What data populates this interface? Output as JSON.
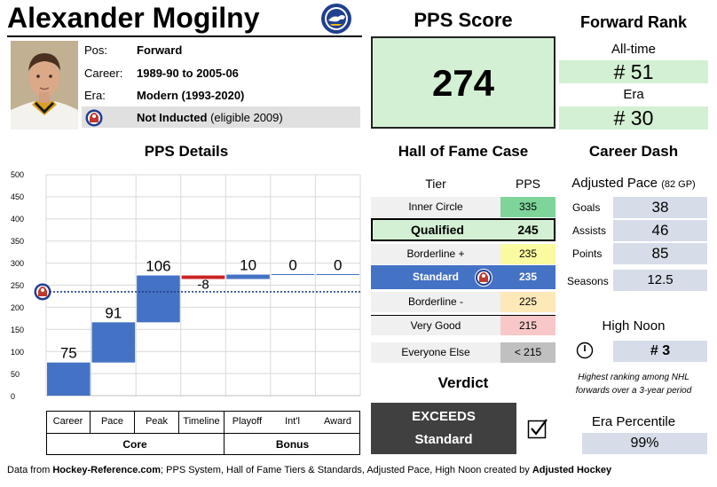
{
  "player": {
    "name": "Alexander Mogilny",
    "pos_label": "Pos:",
    "pos_value": "Forward",
    "career_label": "Career:",
    "career_value": "1989-90 to 2005-06",
    "era_label": "Era:",
    "era_value": "Modern (1993-2020)",
    "hof_status": "Not Inducted",
    "hof_note": "(eligible 2009)"
  },
  "pps_score": {
    "title": "PPS Score",
    "value": "274"
  },
  "forward_rank": {
    "title": "Forward Rank",
    "alltime_label": "All-time",
    "alltime_value": "# 51",
    "era_label": "Era",
    "era_value": "# 30"
  },
  "pps_details": {
    "title": "PPS Details"
  },
  "chart_data": {
    "type": "bar",
    "subtype": "waterfall",
    "title": "PPS Details",
    "ylim": [
      0,
      500
    ],
    "yticks": [
      0,
      50,
      100,
      150,
      200,
      250,
      300,
      350,
      400,
      450,
      500
    ],
    "categories": [
      "Career",
      "Pace",
      "Peak",
      "Timeline",
      "Playoff",
      "Int'l",
      "Award"
    ],
    "values": [
      75,
      91,
      106,
      -8,
      10,
      0,
      0
    ],
    "value_labels": [
      "75",
      "91",
      "106",
      "-8",
      "10",
      "0",
      "0"
    ],
    "groups": [
      {
        "name": "Core",
        "span": 4
      },
      {
        "name": "Bonus",
        "span": 3
      }
    ],
    "reference_line": {
      "value": 235,
      "label": "Standard"
    },
    "colors": {
      "positive": "#4472c4",
      "negative": "#cc2222",
      "reference": "#1f3f8f"
    }
  },
  "hof_case": {
    "title": "Hall of Fame Case",
    "col_tier": "Tier",
    "col_pps": "PPS",
    "tiers": [
      {
        "name": "Inner Circle",
        "pps": "335"
      },
      {
        "name": "Qualified",
        "pps": "245"
      },
      {
        "name": "Borderline +",
        "pps": "235"
      },
      {
        "name": "Standard",
        "pps": "235"
      },
      {
        "name": "Borderline -",
        "pps": "225"
      },
      {
        "name": "Very Good",
        "pps": "215"
      },
      {
        "name": "Everyone Else",
        "pps": "< 215"
      }
    ]
  },
  "verdict": {
    "title": "Verdict",
    "line1": "EXCEEDS",
    "line2": "Standard"
  },
  "career_dash": {
    "title": "Career Dash",
    "adjusted_pace_label": "Adjusted Pace",
    "adjusted_pace_note": "(82 GP)",
    "goals_label": "Goals",
    "goals_value": "38",
    "assists_label": "Assists",
    "assists_value": "46",
    "points_label": "Points",
    "points_value": "85",
    "seasons_label": "Seasons",
    "seasons_value": "12.5"
  },
  "high_noon": {
    "title": "High Noon",
    "value": "# 3",
    "note_line1": "Highest ranking among NHL",
    "note_line2": "forwards over a 3-year period"
  },
  "era_percentile": {
    "title": "Era Percentile",
    "value": "99%"
  },
  "footer": {
    "part1": "Data from ",
    "source": "Hockey-Reference.com",
    "part2": "; PPS System, Hall of Fame Tiers & Standards, Adjusted Pace, High Noon created by ",
    "creator": "Adjusted Hockey"
  }
}
